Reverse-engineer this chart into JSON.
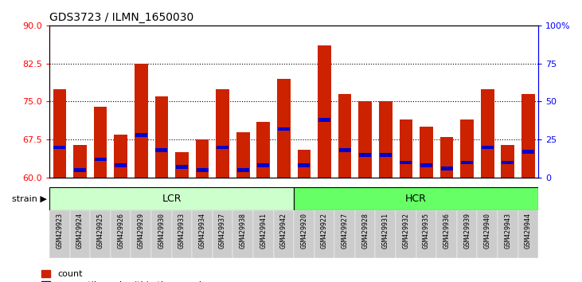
{
  "title": "GDS3723 / ILMN_1650030",
  "samples": [
    "GSM429923",
    "GSM429924",
    "GSM429925",
    "GSM429926",
    "GSM429929",
    "GSM429930",
    "GSM429933",
    "GSM429934",
    "GSM429937",
    "GSM429938",
    "GSM429941",
    "GSM429942",
    "GSM429920",
    "GSM429922",
    "GSM429927",
    "GSM429928",
    "GSM429931",
    "GSM429932",
    "GSM429935",
    "GSM429936",
    "GSM429939",
    "GSM429940",
    "GSM429943",
    "GSM429944"
  ],
  "count_values": [
    77.5,
    66.5,
    74.0,
    68.5,
    82.5,
    76.0,
    65.0,
    67.5,
    77.5,
    69.0,
    71.0,
    79.5,
    65.5,
    86.0,
    76.5,
    75.0,
    75.0,
    71.5,
    70.0,
    68.0,
    71.5,
    77.5,
    66.5,
    76.5
  ],
  "percentile_values": [
    20,
    5,
    12,
    8,
    28,
    18,
    7,
    5,
    20,
    5,
    8,
    32,
    8,
    38,
    18,
    15,
    15,
    10,
    8,
    6,
    10,
    20,
    10,
    17
  ],
  "bar_color": "#cc2200",
  "percentile_color": "#0000cc",
  "ymin": 60,
  "ymax": 90,
  "yticks_left": [
    60,
    67.5,
    75.0,
    82.5,
    90
  ],
  "yticks_right_vals": [
    0,
    25,
    50,
    75,
    100
  ],
  "yticks_right_labels": [
    "0",
    "25",
    "50",
    "75",
    "100%"
  ],
  "grid_values": [
    67.5,
    75.0,
    82.5
  ],
  "bar_width": 0.65,
  "background_color": "#ffffff",
  "plot_bg_color": "#ffffff",
  "tick_bg_color": "#cccccc",
  "lcr_color_light": "#ccffcc",
  "lcr_color_dark": "#66ff66",
  "hcr_color": "#66ff66",
  "strain_label": "strain",
  "lcr_n": 12,
  "hcr_n": 12
}
